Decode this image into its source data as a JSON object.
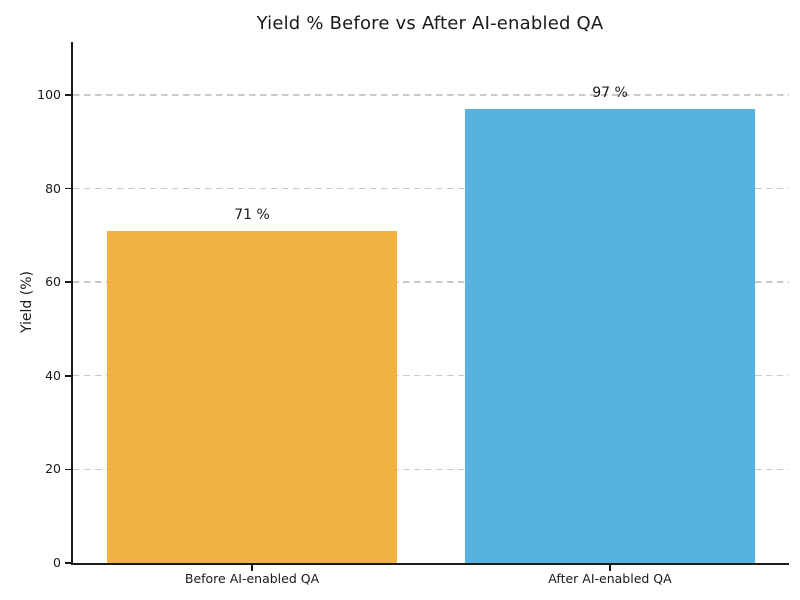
{
  "chart_data": {
    "type": "bar",
    "title": "Yield % Before vs After AI-enabled QA",
    "categories": [
      "Before AI-enabled QA",
      "After AI-enabled QA"
    ],
    "values": [
      71,
      97
    ],
    "bar_labels": [
      "71 %",
      "97 %"
    ],
    "bar_colors": [
      "#F2B242",
      "#57B2E0"
    ],
    "xlabel": "",
    "ylabel": "Yield (%)",
    "ylim": [
      0,
      111.3
    ],
    "yticks": [
      0,
      20,
      40,
      60,
      80,
      100
    ],
    "bar_width_fraction": 0.81,
    "grid": "horizontal-dashed",
    "legend_position": "none",
    "colors": {
      "gridline": "#c9c9c9",
      "spine": "#1a1a1a",
      "text": "#1a1a1a",
      "background": "#ffffff"
    }
  }
}
